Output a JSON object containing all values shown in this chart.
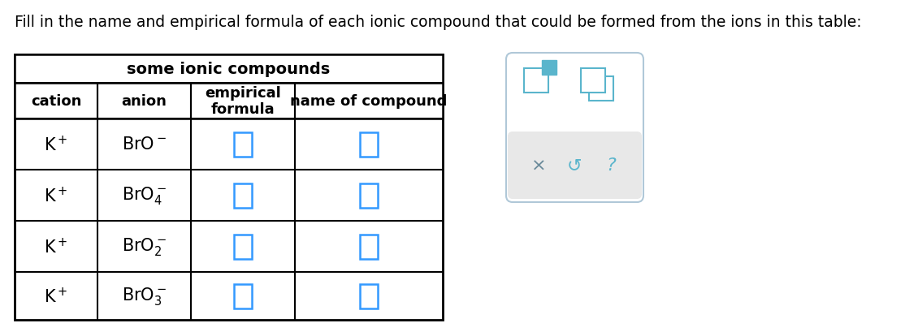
{
  "title_text": "Fill in the name and empirical formula of each ionic compound that could be formed from the ions in this table:",
  "table_title": "some ionic compounds",
  "col_headers": [
    "cation",
    "anion",
    "empirical\nformula",
    "name of compound"
  ],
  "rows_col0": [
    "K$^+$",
    "K$^+$",
    "K$^+$",
    "K$^+$"
  ],
  "rows_col1": [
    "BrO$^-$",
    "BrO$_4^-$",
    "BrO$_2^-$",
    "BrO$_3^-$"
  ],
  "bg_color": "#ffffff",
  "input_box_color": "#3399ff",
  "widget_box_bg": "#f0f0f0",
  "widget_box_border": "#b0c8d8",
  "icon_color": "#5ab5cc",
  "title_fontsize": 13.5,
  "table_title_fontsize": 14,
  "header_fontsize": 13,
  "cell_fontsize": 14,
  "sym_color": "#6a8a9a"
}
